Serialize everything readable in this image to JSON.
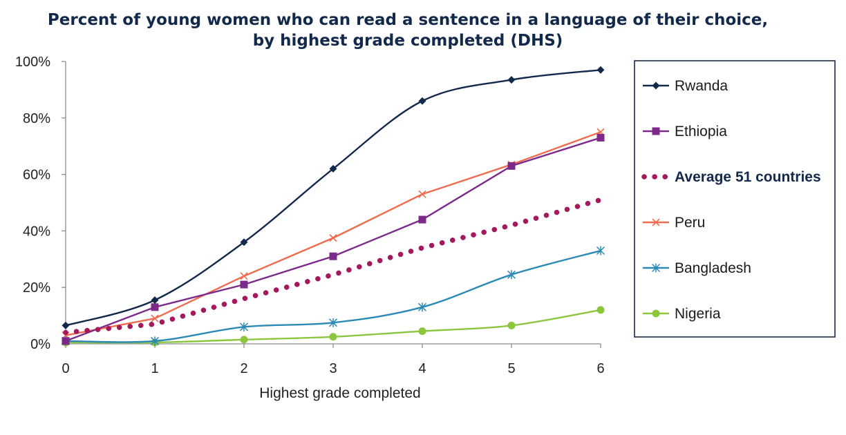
{
  "chart_data": {
    "type": "line",
    "title": "Percent of young women who can read a sentence in a language of their choice, by highest grade completed (DHS)",
    "title_lines": [
      "Percent of young women who can read a sentence in a language of their choice,",
      "by highest grade completed (DHS)"
    ],
    "xlabel": "Highest grade completed",
    "ylabel": "",
    "x": [
      0,
      1,
      2,
      3,
      4,
      5,
      6
    ],
    "x_tick_labels": [
      "0",
      "1",
      "2",
      "3",
      "4",
      "5",
      "6"
    ],
    "ylim": [
      0,
      100
    ],
    "y_ticks": [
      0,
      20,
      40,
      60,
      80,
      100
    ],
    "y_tick_labels": [
      "0%",
      "20%",
      "40%",
      "60%",
      "80%",
      "100%"
    ],
    "grid": false,
    "legend_position": "right",
    "series": [
      {
        "name": "Rwanda",
        "values": [
          6.5,
          15.5,
          36,
          62,
          86,
          93.5,
          97
        ],
        "color": "#13294b",
        "marker": "diamond",
        "line_style": "solid",
        "smooth": true
      },
      {
        "name": "Ethiopia",
        "values": [
          1,
          13,
          21,
          31,
          44,
          63,
          73
        ],
        "color": "#7b2a8a",
        "marker": "square",
        "line_style": "solid",
        "smooth": false
      },
      {
        "name": "Average 51 countries",
        "values": [
          4,
          7,
          16,
          24.5,
          34,
          42,
          51
        ],
        "color": "#a3195b",
        "marker": "none",
        "line_style": "dotted",
        "smooth": false,
        "bold_label": true
      },
      {
        "name": "Peru",
        "values": [
          3,
          9,
          24,
          37.5,
          53,
          63.5,
          75
        ],
        "color": "#ee6c4d",
        "marker": "x",
        "line_style": "solid",
        "smooth": false
      },
      {
        "name": "Bangladesh",
        "values": [
          1,
          1,
          6,
          7.5,
          13,
          24.5,
          33
        ],
        "color": "#2b8ab5",
        "marker": "asterisk",
        "line_style": "solid",
        "smooth": true
      },
      {
        "name": "Nigeria",
        "values": [
          0.5,
          0.5,
          1.5,
          2.5,
          4.5,
          6.5,
          12
        ],
        "color": "#8cc63f",
        "marker": "circle",
        "line_style": "solid",
        "smooth": true
      }
    ]
  }
}
